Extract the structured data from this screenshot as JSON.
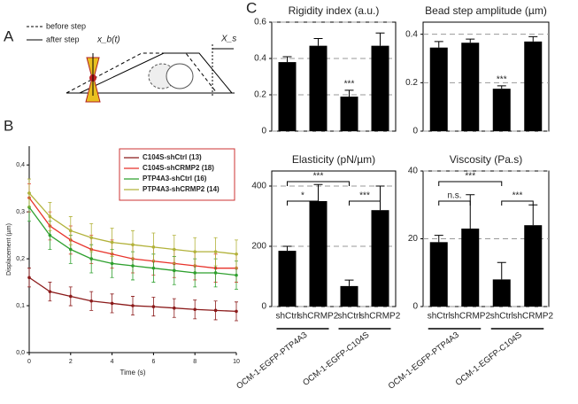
{
  "panel_labels": [
    "A",
    "B",
    "C"
  ],
  "diagram": {
    "legend": [
      "before step",
      "after step"
    ],
    "labels": [
      "x_b(t)",
      "X_s"
    ]
  },
  "chart_data": [
    {
      "type": "line",
      "xlabel": "Time (s)",
      "ylabel": "Displacement (µm)",
      "x": [
        0,
        1,
        2,
        3,
        4,
        5,
        6,
        7,
        8,
        9,
        10
      ],
      "xlim": [
        0,
        10
      ],
      "xticks": [
        0,
        2,
        4,
        6,
        8,
        10
      ],
      "ylim": [
        0,
        0.44
      ],
      "yticks": [
        {
          "value": 0,
          "label": "0,0"
        },
        {
          "value": 0.1,
          "label": "0,1"
        },
        {
          "value": 0.2,
          "label": "0,2"
        },
        {
          "value": 0.3,
          "label": "0,3"
        },
        {
          "value": 0.4,
          "label": "0,4"
        }
      ],
      "legend": "upper right",
      "series": [
        {
          "name": "C104S-shCtrl (13)",
          "color": "#8b1a1a",
          "values": [
            0.16,
            0.13,
            0.12,
            0.11,
            0.105,
            0.1,
            0.098,
            0.095,
            0.092,
            0.09,
            0.088
          ],
          "errors": [
            0.02,
            0.02,
            0.02,
            0.02,
            0.02,
            0.02,
            0.02,
            0.02,
            0.02,
            0.02,
            0.02
          ]
        },
        {
          "name": "C104S-shCRMP2 (18)",
          "color": "#e8322a",
          "values": [
            0.33,
            0.27,
            0.24,
            0.22,
            0.21,
            0.2,
            0.195,
            0.19,
            0.185,
            0.18,
            0.18
          ],
          "errors": [
            0.03,
            0.03,
            0.03,
            0.03,
            0.03,
            0.03,
            0.03,
            0.03,
            0.03,
            0.03,
            0.03
          ]
        },
        {
          "name": "PTP4A3-shCtrl (16)",
          "color": "#2ea02e",
          "values": [
            0.31,
            0.25,
            0.22,
            0.2,
            0.19,
            0.185,
            0.18,
            0.175,
            0.17,
            0.17,
            0.165
          ],
          "errors": [
            0.03,
            0.03,
            0.03,
            0.03,
            0.03,
            0.03,
            0.03,
            0.03,
            0.03,
            0.03,
            0.03
          ]
        },
        {
          "name": "PTP4A3-shCRMP2 (14)",
          "color": "#b2b23a",
          "values": [
            0.34,
            0.29,
            0.26,
            0.245,
            0.235,
            0.23,
            0.225,
            0.22,
            0.215,
            0.215,
            0.21
          ],
          "errors": [
            0.03,
            0.03,
            0.03,
            0.03,
            0.03,
            0.03,
            0.03,
            0.03,
            0.03,
            0.03,
            0.03
          ]
        }
      ]
    },
    {
      "type": "bar",
      "title": "Rigidity index (a.u.)",
      "categories": [
        null,
        null,
        null,
        null
      ],
      "values": [
        0.38,
        0.47,
        0.19,
        0.47
      ],
      "errors": [
        0.03,
        0.04,
        0.035,
        0.07
      ],
      "color": "#000000",
      "ylim": [
        0,
        0.6
      ],
      "yticks": [
        0,
        0.2,
        0.4,
        0.6
      ],
      "grid": "dashed",
      "brackets": [
        {
          "label": "***",
          "bars": [
            2
          ]
        }
      ]
    },
    {
      "type": "bar",
      "title": "Bead step amplitude (µm)",
      "categories": [
        null,
        null,
        null,
        null
      ],
      "values": [
        0.345,
        0.365,
        0.175,
        0.37
      ],
      "errors": [
        0.025,
        0.015,
        0.012,
        0.02
      ],
      "color": "#000000",
      "ylim": [
        0,
        0.45
      ],
      "yticks": [
        0,
        0.2,
        0.4
      ],
      "grid": "dashed",
      "brackets": [
        {
          "label": "***",
          "bars": [
            2
          ]
        }
      ]
    },
    {
      "type": "bar",
      "title": "Elasticity (pN/µm)",
      "categories": [
        "shCtrl",
        "shCRMP2",
        "shCtrl",
        "shCRMP2"
      ],
      "groups": [
        "OCM-1-EGFP-PTP4A3",
        "OCM-1-EGFP-C104S"
      ],
      "values": [
        185,
        350,
        68,
        320
      ],
      "errors": [
        15,
        55,
        20,
        80
      ],
      "color": "#000000",
      "ylim": [
        0,
        450
      ],
      "yticks": [
        0,
        200,
        400
      ],
      "grid": "dashed",
      "brackets": [
        {
          "label": "***",
          "bars": [
            0,
            2
          ]
        },
        {
          "label": "*",
          "bars": [
            0,
            1
          ]
        },
        {
          "label": "***",
          "bars": [
            2,
            3
          ]
        }
      ]
    },
    {
      "type": "bar",
      "title": "Viscosity (Pa.s)",
      "categories": [
        "shCtrl",
        "shCRMP2",
        "shCtrl",
        "shCRMP2"
      ],
      "groups": [
        "OCM-1-EGFP-PTP4A3",
        "OCM-1-EGFP-C104S"
      ],
      "values": [
        19,
        23,
        8,
        24
      ],
      "errors": [
        2,
        10,
        5,
        6
      ],
      "color": "#000000",
      "ylim": [
        0,
        40
      ],
      "yticks": [
        0,
        20,
        40
      ],
      "grid": "dashed",
      "brackets": [
        {
          "label": "***",
          "bars": [
            0,
            2
          ]
        },
        {
          "label": "n.s.",
          "bars": [
            0,
            1
          ]
        },
        {
          "label": "***",
          "bars": [
            2,
            3
          ]
        }
      ]
    }
  ]
}
